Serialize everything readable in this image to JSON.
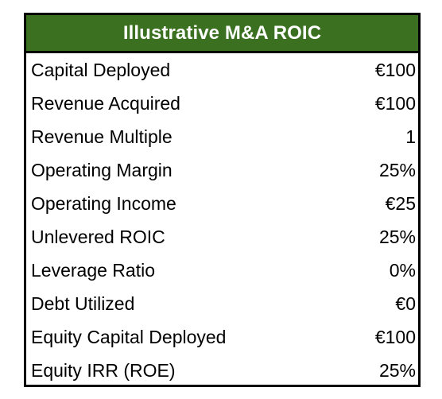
{
  "table": {
    "title": "Illustrative M&A ROIC",
    "header_color": "#3a701f",
    "rows": [
      {
        "label": "Capital Deployed",
        "value": "€100"
      },
      {
        "label": "Revenue Acquired",
        "value": "€100"
      },
      {
        "label": "Revenue Multiple",
        "value": "1"
      },
      {
        "label": "Operating Margin",
        "value": "25%"
      },
      {
        "label": "Operating Income",
        "value": "€25"
      },
      {
        "label": "Unlevered ROIC",
        "value": "25%"
      },
      {
        "label": "Leverage Ratio",
        "value": "0%"
      },
      {
        "label": "Debt Utilized",
        "value": "€0"
      },
      {
        "label": "Equity Capital Deployed",
        "value": "€100"
      },
      {
        "label": "Equity IRR (ROE)",
        "value": "25%"
      }
    ]
  }
}
